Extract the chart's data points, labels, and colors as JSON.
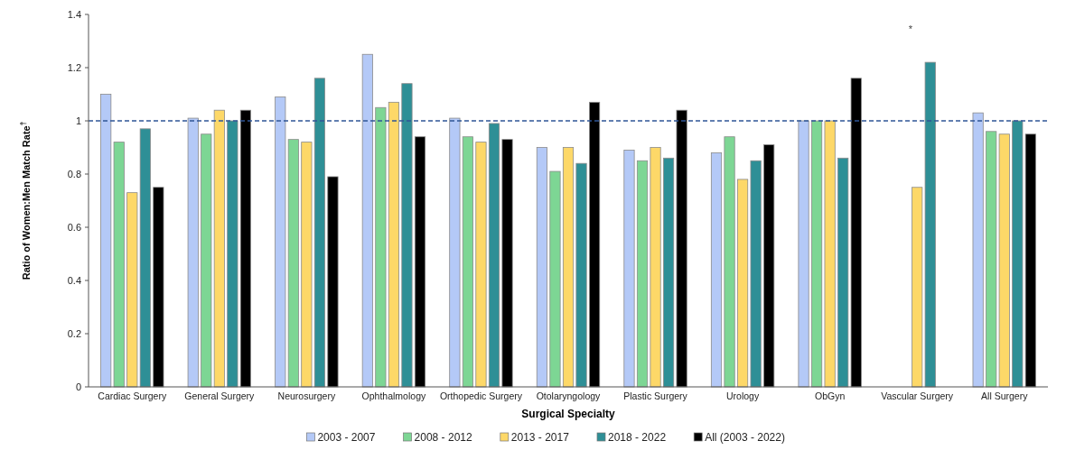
{
  "chart_data": {
    "type": "bar",
    "xlabel": "Surgical Specialty",
    "ylabel": "Ratio of Women:Men Match Rate$^{†}$",
    "categories": [
      "Cardiac Surgery",
      "General Surgery",
      "Neurosurgery",
      "Ophthalmology",
      "Orthopedic Surgery",
      "Otolaryngology",
      "Plastic Surgery",
      "Urology",
      "ObGyn",
      "Vascular Surgery",
      "All Surgery"
    ],
    "series": [
      {
        "name": "2003 - 2007",
        "color": "#b4c9f7",
        "values": [
          1.1,
          1.01,
          1.09,
          1.25,
          1.01,
          0.9,
          0.89,
          0.88,
          1.0,
          null,
          1.03
        ]
      },
      {
        "name": "2008 - 2012",
        "color": "#7dd694",
        "values": [
          0.92,
          0.95,
          0.93,
          1.05,
          0.94,
          0.81,
          0.85,
          0.94,
          1.0,
          null,
          0.96
        ]
      },
      {
        "name": "2013 - 2017",
        "color": "#fdd868",
        "values": [
          0.73,
          1.04,
          0.92,
          1.07,
          0.92,
          0.9,
          0.9,
          0.78,
          1.0,
          0.75,
          0.95
        ]
      },
      {
        "name": "2018 - 2022",
        "color": "#2e8f96",
        "values": [
          0.97,
          1.0,
          1.16,
          1.14,
          0.99,
          0.84,
          0.86,
          0.85,
          0.86,
          1.22,
          1.0
        ]
      },
      {
        "name": "All (2003 - 2022)",
        "color": "#000000",
        "values": [
          0.75,
          1.04,
          0.79,
          0.94,
          0.93,
          1.07,
          1.04,
          0.91,
          1.16,
          null,
          0.95
        ]
      }
    ],
    "ylim": [
      0,
      1.4
    ],
    "yticks": [
      0,
      0.2,
      0.4,
      0.6,
      0.8,
      1,
      1.2,
      1.4
    ],
    "ref_lines": [
      {
        "axis": "y",
        "value": 1,
        "color": "#2f5597",
        "line_style": "dashed"
      }
    ],
    "annotations": [
      "*"
    ],
    "legend": "bottom",
    "grid": false
  }
}
